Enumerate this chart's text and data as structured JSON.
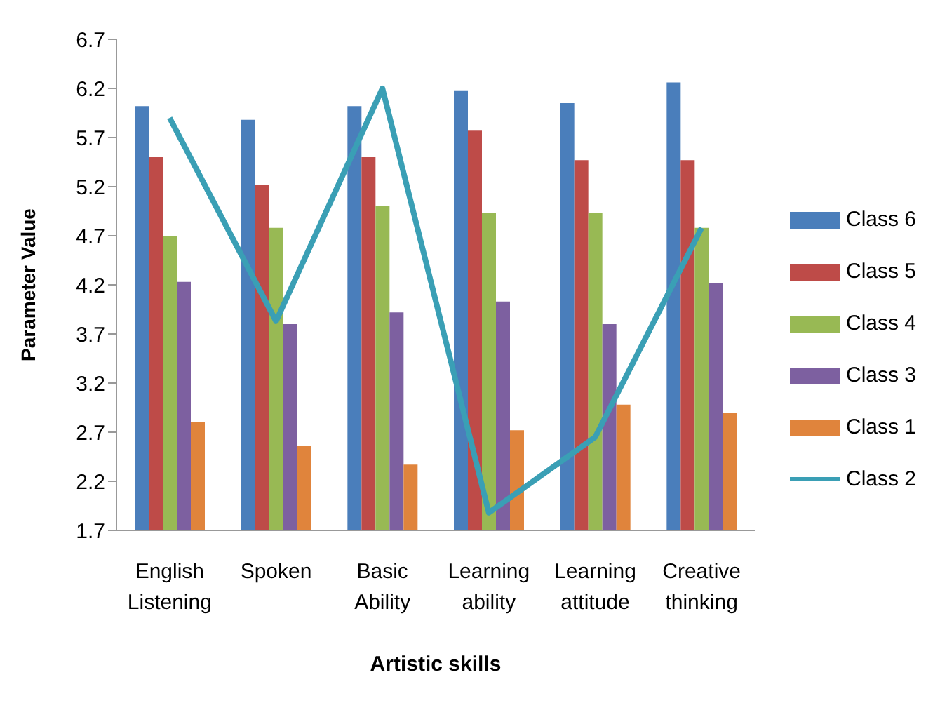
{
  "chart_data": {
    "type": "bar",
    "xlabel": "Artistic skills",
    "ylabel": "Parameter Value",
    "categories": [
      "English Listening",
      "Spoken",
      "Basic Ability",
      "Learning ability",
      "Learning attitude",
      "Creative thinking"
    ],
    "series": [
      {
        "name": "Class 6",
        "color": "#4a7ebb",
        "values": [
          6.02,
          5.88,
          6.02,
          6.18,
          6.05,
          6.26
        ]
      },
      {
        "name": "Class 5",
        "color": "#be4b48",
        "values": [
          5.5,
          5.22,
          5.5,
          5.77,
          5.47,
          5.47
        ]
      },
      {
        "name": "Class 4",
        "color": "#98b954",
        "values": [
          4.7,
          4.78,
          5.0,
          4.93,
          4.93,
          4.78
        ]
      },
      {
        "name": "Class 3",
        "color": "#7d60a0",
        "values": [
          4.23,
          3.8,
          3.92,
          4.03,
          3.8,
          4.22
        ]
      },
      {
        "name": "Class 1",
        "color": "#e0843c",
        "values": [
          2.8,
          2.56,
          2.37,
          2.72,
          2.98,
          2.9
        ]
      },
      {
        "name": "Class 2",
        "type": "line",
        "color": "#3a9fb5",
        "values": [
          5.9,
          3.83,
          6.2,
          1.88,
          2.65,
          4.78
        ]
      }
    ],
    "ylim": [
      1.7,
      6.7
    ],
    "yticks": [
      1.7,
      2.2,
      2.7,
      3.2,
      3.7,
      4.2,
      4.7,
      5.2,
      5.7,
      6.2,
      6.7
    ],
    "grid": false,
    "legend": "right",
    "marker": "none",
    "line_style": "solid"
  }
}
